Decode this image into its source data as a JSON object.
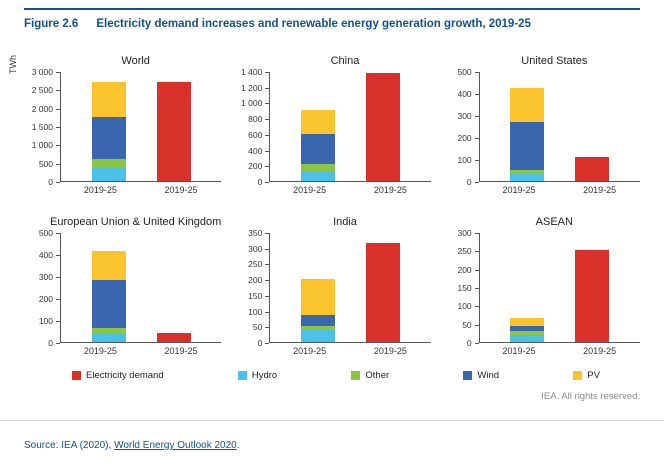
{
  "figure": {
    "label": "Figure 2.6",
    "title": "Electricity demand increases and renewable energy generation growth, 2019-25"
  },
  "colors": {
    "Electricity demand": "#d9302c",
    "Hydro": "#4cc1e8",
    "Other": "#8cc540",
    "Wind": "#3a66b0",
    "PV": "#fcc42c",
    "accent_navy": "#11508c"
  },
  "chart_data": [
    {
      "type": "bar",
      "title": "World",
      "unit": "TWh",
      "ymax": 3000,
      "ticks": [
        "0",
        "500",
        "1 000",
        "1 500",
        "2 000",
        "2 500",
        "3 000"
      ],
      "categories": [
        "2019-25",
        "2019-25"
      ],
      "stack": {
        "Hydro": 350,
        "Other": 250,
        "Wind": 1150,
        "PV": 950
      },
      "demand": 2700
    },
    {
      "type": "bar",
      "title": "China",
      "unit": "",
      "ymax": 1400,
      "ticks": [
        "0",
        "200",
        "400",
        "600",
        "800",
        "1 000",
        "1 200",
        "1 400"
      ],
      "categories": [
        "2019-25",
        "2019-25"
      ],
      "stack": {
        "Hydro": 130,
        "Other": 90,
        "Wind": 380,
        "PV": 300
      },
      "demand": 1370
    },
    {
      "type": "bar",
      "title": "United States",
      "unit": "",
      "ymax": 500,
      "ticks": [
        "0",
        "100",
        "200",
        "300",
        "400",
        "500"
      ],
      "categories": [
        "2019-25",
        "2019-25"
      ],
      "stack": {
        "Hydro": 30,
        "Other": 20,
        "Wind": 220,
        "PV": 155
      },
      "demand": 110
    },
    {
      "type": "bar",
      "title": "European Union & United Kingdom",
      "unit": "",
      "ymax": 500,
      "ticks": [
        "0",
        "100",
        "200",
        "300",
        "400",
        "500"
      ],
      "categories": [
        "2019-25",
        "2019-25"
      ],
      "stack": {
        "Hydro": 40,
        "Other": 25,
        "Wind": 215,
        "PV": 135
      },
      "demand": 40
    },
    {
      "type": "bar",
      "title": "India",
      "unit": "",
      "ymax": 350,
      "ticks": [
        "0",
        "50",
        "100",
        "150",
        "200",
        "250",
        "300",
        "350"
      ],
      "categories": [
        "2019-25",
        "2019-25"
      ],
      "stack": {
        "Hydro": 40,
        "Other": 10,
        "Wind": 35,
        "PV": 115
      },
      "demand": 315
    },
    {
      "type": "bar",
      "title": "ASEAN",
      "unit": "",
      "ymax": 300,
      "ticks": [
        "0",
        "50",
        "100",
        "150",
        "200",
        "250",
        "300"
      ],
      "categories": [
        "2019-25",
        "2019-25"
      ],
      "stack": {
        "Hydro": 18,
        "Other": 12,
        "Wind": 13,
        "PV": 22
      },
      "demand": 250
    }
  ],
  "legend": [
    {
      "label": "Electricity demand",
      "key": "Electricity demand"
    },
    {
      "label": "Hydro",
      "key": "Hydro"
    },
    {
      "label": "Other",
      "key": "Other"
    },
    {
      "label": "Wind",
      "key": "Wind"
    },
    {
      "label": "PV",
      "key": "PV"
    }
  ],
  "footer": {
    "iea_note": "IEA. All rights reserved.",
    "source_prefix": "Source: IEA (2020), ",
    "source_link": "World Energy Outlook 2020",
    "source_suffix": "."
  }
}
